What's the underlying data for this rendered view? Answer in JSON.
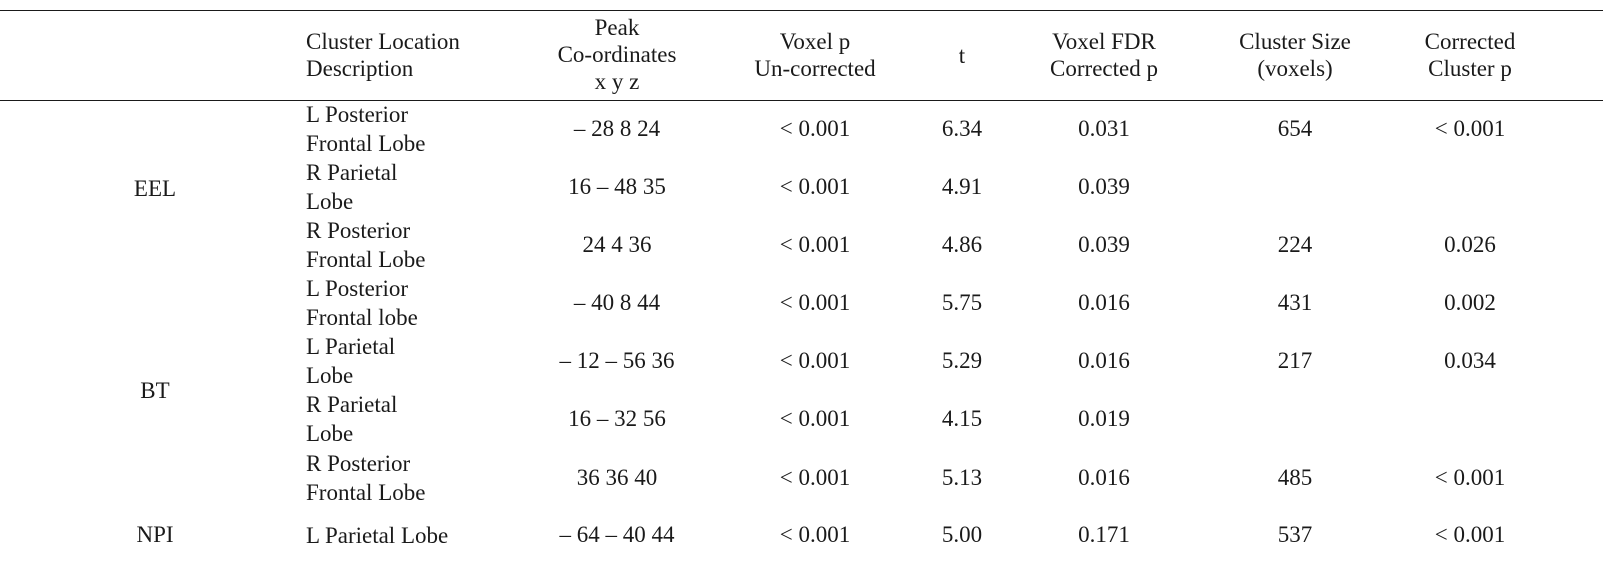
{
  "table": {
    "headers": {
      "location": "Cluster Location\nDescription",
      "coords": "Peak\nCo-ordinates\nx y z",
      "voxel_p": "Voxel p\nUn-corrected",
      "t": "t",
      "fdr": "Voxel FDR\nCorrected p",
      "size": "Cluster Size\n(voxels)",
      "cluster_p": "Corrected\nCluster p"
    },
    "groups": [
      "EEL",
      "BT",
      "NPI"
    ],
    "rows": [
      {
        "location": "L Posterior\nFrontal Lobe",
        "coords": "– 28 8 24",
        "voxel_p": "< 0.001",
        "t": "6.34",
        "fdr": "0.031",
        "size": "654",
        "cluster_p": "< 0.001"
      },
      {
        "location": "R Parietal\nLobe",
        "coords": "16 – 48 35",
        "voxel_p": "< 0.001",
        "t": "4.91",
        "fdr": "0.039",
        "size": "",
        "cluster_p": ""
      },
      {
        "location": "R Posterior\nFrontal Lobe",
        "coords": "24 4 36",
        "voxel_p": "< 0.001",
        "t": "4.86",
        "fdr": "0.039",
        "size": "224",
        "cluster_p": "0.026"
      },
      {
        "location": "L Posterior\nFrontal lobe",
        "coords": "– 40 8 44",
        "voxel_p": "< 0.001",
        "t": "5.75",
        "fdr": "0.016",
        "size": "431",
        "cluster_p": "0.002"
      },
      {
        "location": "L Parietal\nLobe",
        "coords": "– 12 – 56 36",
        "voxel_p": "< 0.001",
        "t": "5.29",
        "fdr": "0.016",
        "size": "217",
        "cluster_p": "0.034"
      },
      {
        "location": "R Parietal\nLobe",
        "coords": "16 – 32 56",
        "voxel_p": "< 0.001",
        "t": "4.15",
        "fdr": "0.019",
        "size": "",
        "cluster_p": ""
      },
      {
        "location": "R Posterior\nFrontal Lobe",
        "coords": "36 36 40",
        "voxel_p": "< 0.001",
        "t": "5.13",
        "fdr": "0.016",
        "size": "485",
        "cluster_p": "< 0.001"
      },
      {
        "location": "L Parietal Lobe",
        "coords": "– 64 – 40 44",
        "voxel_p": "< 0.001",
        "t": "5.00",
        "fdr": "0.171",
        "size": "537",
        "cluster_p": "< 0.001"
      }
    ]
  }
}
